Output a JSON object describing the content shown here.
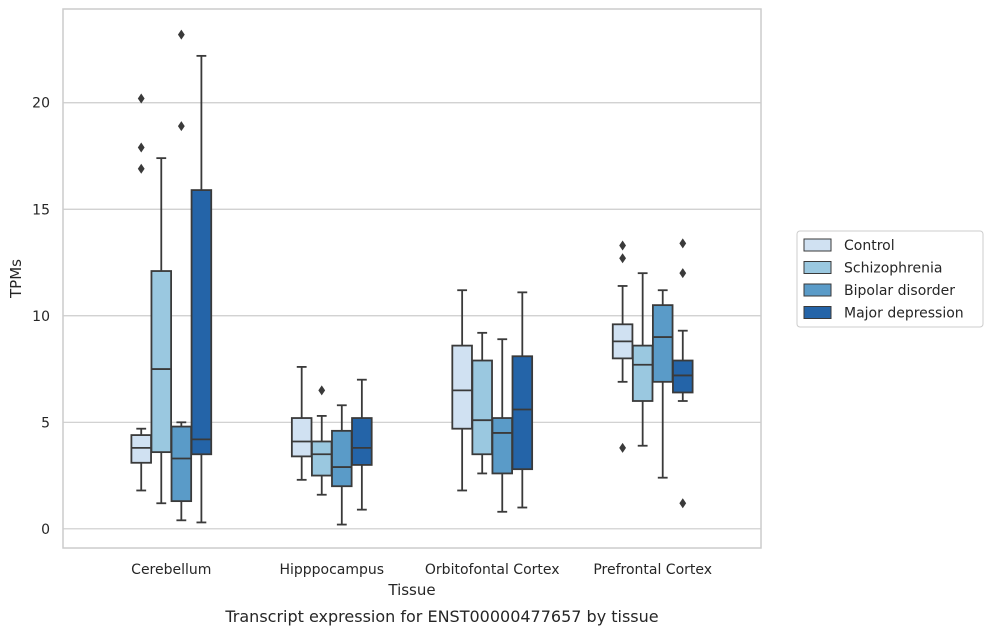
{
  "chart_data": {
    "type": "boxplot",
    "caption": "Transcript expression for ENST00000477657 by tissue",
    "xlabel": "Tissue",
    "ylabel": "TPMs",
    "ylim": [
      -0.9,
      24.4
    ],
    "yticks": [
      0,
      5,
      10,
      15,
      20
    ],
    "grid": "horizontal",
    "legend_position": "right",
    "categories": [
      "Cerebellum",
      "Hipppocampus",
      "Orbitofontal Cortex",
      "Prefrontal Cortex"
    ],
    "series": [
      {
        "name": "Control",
        "color": "#d0e1f2",
        "boxes": [
          {
            "whislo": 1.8,
            "q1": 3.1,
            "med": 3.8,
            "q3": 4.4,
            "whishi": 4.7,
            "fliers": [
              16.9,
              17.9,
              20.2
            ]
          },
          {
            "whislo": 2.3,
            "q1": 3.4,
            "med": 4.1,
            "q3": 5.2,
            "whishi": 7.6,
            "fliers": []
          },
          {
            "whislo": 1.8,
            "q1": 4.7,
            "med": 6.5,
            "q3": 8.6,
            "whishi": 11.2,
            "fliers": []
          },
          {
            "whislo": 6.9,
            "q1": 8.0,
            "med": 8.8,
            "q3": 9.6,
            "whishi": 11.4,
            "fliers": [
              3.8,
              12.7,
              13.3
            ]
          }
        ]
      },
      {
        "name": "Schizophrenia",
        "color": "#9ac8e0",
        "boxes": [
          {
            "whislo": 1.2,
            "q1": 3.6,
            "med": 7.5,
            "q3": 12.1,
            "whishi": 17.4,
            "fliers": []
          },
          {
            "whislo": 1.6,
            "q1": 2.5,
            "med": 3.5,
            "q3": 4.1,
            "whishi": 5.3,
            "fliers": [
              6.5
            ]
          },
          {
            "whislo": 2.6,
            "q1": 3.5,
            "med": 5.1,
            "q3": 7.9,
            "whishi": 9.2,
            "fliers": []
          },
          {
            "whislo": 3.9,
            "q1": 6.0,
            "med": 7.7,
            "q3": 8.6,
            "whishi": 12.0,
            "fliers": []
          }
        ]
      },
      {
        "name": "Bipolar disorder",
        "color": "#5a9bc8",
        "boxes": [
          {
            "whislo": 0.4,
            "q1": 1.3,
            "med": 3.3,
            "q3": 4.8,
            "whishi": 5.0,
            "fliers": [
              18.9,
              23.2
            ]
          },
          {
            "whislo": 0.2,
            "q1": 2.0,
            "med": 2.9,
            "q3": 4.6,
            "whishi": 5.8,
            "fliers": []
          },
          {
            "whislo": 0.8,
            "q1": 2.6,
            "med": 4.5,
            "q3": 5.2,
            "whishi": 8.9,
            "fliers": []
          },
          {
            "whislo": 2.4,
            "q1": 6.9,
            "med": 9.0,
            "q3": 10.5,
            "whishi": 11.2,
            "fliers": []
          }
        ]
      },
      {
        "name": "Major depression",
        "color": "#2464a8",
        "boxes": [
          {
            "whislo": 0.3,
            "q1": 3.5,
            "med": 4.2,
            "q3": 15.9,
            "whishi": 22.2,
            "fliers": []
          },
          {
            "whislo": 0.9,
            "q1": 3.0,
            "med": 3.8,
            "q3": 5.2,
            "whishi": 7.0,
            "fliers": []
          },
          {
            "whislo": 1.0,
            "q1": 2.8,
            "med": 5.6,
            "q3": 8.1,
            "whishi": 11.1,
            "fliers": []
          },
          {
            "whislo": 6.0,
            "q1": 6.4,
            "med": 7.2,
            "q3": 7.9,
            "whishi": 9.3,
            "fliers": [
              1.2,
              12.0,
              13.4
            ]
          }
        ]
      }
    ]
  }
}
